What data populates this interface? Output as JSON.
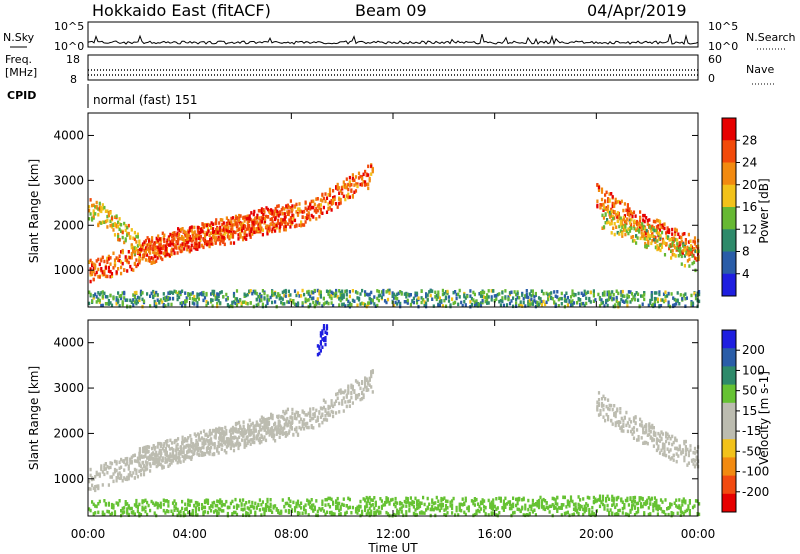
{
  "header": {
    "station": "Hokkaido East (fitACF)",
    "beam": "Beam 09",
    "date": "04/Apr/2019"
  },
  "noise_panel": {
    "left_label": "N.Sky",
    "right_label": "N.Search",
    "left_ticks": [
      "10^5",
      "10^0"
    ],
    "right_ticks": [
      "10^5",
      "10^0"
    ]
  },
  "freq_panel": {
    "left_label_1": "Freq.",
    "left_label_2": "[MHz]",
    "left_ticks": [
      "18",
      "8"
    ],
    "right_label": "Nave",
    "right_ticks": [
      "60",
      "0"
    ]
  },
  "cpid_panel": {
    "label": "CPID",
    "text": "normal (fast) 151"
  },
  "x_axis": {
    "title": "Time UT",
    "ticks": [
      "00:00",
      "04:00",
      "08:00",
      "12:00",
      "16:00",
      "20:00",
      "00:00"
    ]
  },
  "colors": {
    "power_scale": [
      "#1f1fe0",
      "#2a5da8",
      "#2e8a6a",
      "#66b833",
      "#f2c21a",
      "#f28a10",
      "#f24a0a",
      "#e60000"
    ],
    "velocity_scale": [
      "#e60000",
      "#f24a10",
      "#f28a10",
      "#f2c21a",
      "#bcbcb0",
      "#bcbcb0",
      "#66c233",
      "#2e8a6a",
      "#2a5da8",
      "#1f1fe0"
    ]
  },
  "chart_data": [
    {
      "type": "heatmap",
      "title": "",
      "xlabel": "",
      "ylabel": "Slant Range [km]",
      "xlim": [
        0,
        24
      ],
      "ylim": [
        180,
        4500
      ],
      "y_ticks": [
        "1000",
        "2000",
        "3000",
        "4000"
      ],
      "colorbar": {
        "label": "Power [dB]",
        "ticks": [
          "4",
          "8",
          "12",
          "16",
          "20",
          "24",
          "28"
        ],
        "range": [
          0,
          30
        ]
      },
      "features": [
        {
          "x": [
            0.0,
            1.5,
            3.0,
            4.5,
            5.5,
            6.5,
            7.5,
            8.5,
            9.5,
            10.5,
            11.2
          ],
          "y": [
            1000,
            1250,
            1550,
            1800,
            1850,
            2050,
            2150,
            2300,
            2600,
            2950,
            3200
          ],
          "value": 25
        },
        {
          "x": [
            2.0,
            3.5,
            5.0,
            6.5,
            7.5,
            8.0
          ],
          "y": [
            1450,
            1700,
            1900,
            2100,
            2250,
            2350
          ],
          "value": 27
        },
        {
          "x": [
            0.0,
            0.5,
            1.0,
            1.5,
            2.0
          ],
          "y": [
            2400,
            2250,
            2050,
            1800,
            1550
          ],
          "value": 19
        },
        {
          "x": [
            20.0,
            21.0,
            22.0,
            23.0,
            24.0
          ],
          "y": [
            2700,
            2300,
            2000,
            1700,
            1500
          ],
          "value": 25
        },
        {
          "x": [
            20.2,
            21.5,
            22.8,
            24.0
          ],
          "y": [
            2200,
            1900,
            1550,
            1250
          ],
          "value": 17
        },
        {
          "x": [
            0.0,
            6.0,
            12.0,
            18.0,
            24.0
          ],
          "y": [
            300,
            320,
            340,
            320,
            300
          ],
          "value": 11
        }
      ]
    },
    {
      "type": "heatmap",
      "title": "",
      "xlabel": "Time UT",
      "ylabel": "Slant Range [km]",
      "xlim": [
        0,
        24
      ],
      "ylim": [
        180,
        4500
      ],
      "y_ticks": [
        "1000",
        "2000",
        "3000",
        "4000"
      ],
      "colorbar": {
        "label": "Velocity [m s-1]",
        "ticks": [
          "200",
          "100",
          "50",
          "15",
          "-15",
          "-50",
          "-100",
          "-200"
        ],
        "range": [
          -250,
          250
        ]
      },
      "features": [
        {
          "x": [
            0.0,
            1.5,
            3.0,
            4.5,
            5.5,
            6.5,
            7.5,
            8.5,
            9.5,
            10.5,
            11.2
          ],
          "y": [
            1000,
            1250,
            1550,
            1800,
            1850,
            2050,
            2150,
            2300,
            2600,
            2950,
            3200
          ],
          "value": 0
        },
        {
          "x": [
            2.0,
            3.5,
            5.0,
            6.5,
            7.5,
            8.0
          ],
          "y": [
            1450,
            1700,
            1900,
            2100,
            2250,
            2350
          ],
          "value": 0
        },
        {
          "x": [
            20.0,
            21.0,
            22.0,
            23.0,
            24.0
          ],
          "y": [
            2700,
            2300,
            2000,
            1700,
            1500
          ],
          "value": 0
        },
        {
          "x": [
            9.0,
            9.2,
            9.4
          ],
          "y": [
            4000,
            4150,
            4300
          ],
          "value": 230
        },
        {
          "x": [
            0.0,
            6.0,
            12.0,
            16.0,
            20.0,
            24.0
          ],
          "y": [
            300,
            320,
            380,
            350,
            400,
            320
          ],
          "value": 30
        }
      ]
    }
  ]
}
